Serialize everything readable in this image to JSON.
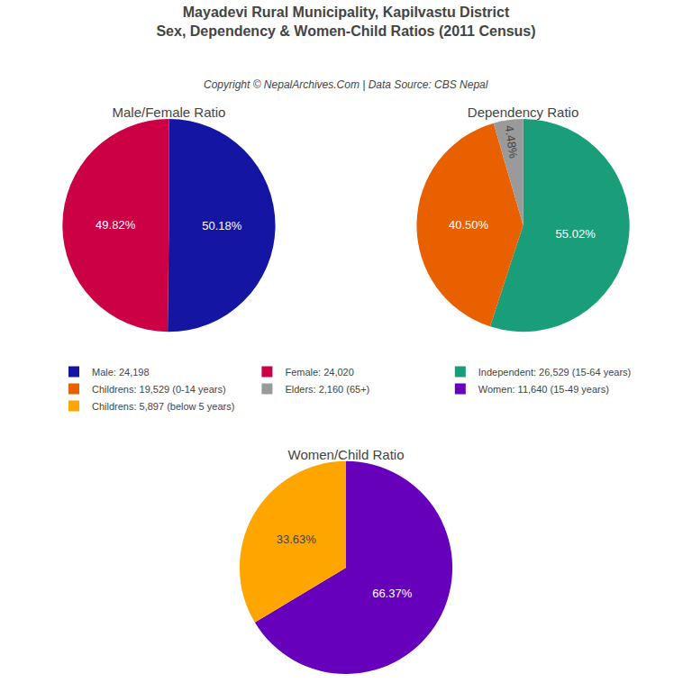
{
  "title": "Mayadevi Rural Municipality, Kapilvastu District",
  "subtitle": "Sex, Dependency & Women-Child Ratios (2011 Census)",
  "annotations": [
    "Copyright © NepalArchives.Com | Data Source: CBS Nepal"
  ],
  "legend": "center",
  "chart_data": [
    {
      "type": "pie",
      "title": "Male/Female Ratio",
      "categories": [
        "Male: 24,198",
        "Female: 24,020"
      ],
      "values": [
        50.18,
        49.82
      ],
      "value_labels": [
        "50.18%",
        "49.82%"
      ],
      "colors": [
        "#1515A3",
        "#CC0044"
      ],
      "data_labels": true
    },
    {
      "type": "pie",
      "title": "Dependency Ratio",
      "categories": [
        "Independent: 26,529 (15-64 years)",
        "Childrens: 19,529 (0-14 years)",
        "Elders: 2,160 (65+)"
      ],
      "values": [
        55.02,
        40.5,
        4.48
      ],
      "value_labels": [
        "55.02%",
        "40.50%",
        "4.48%"
      ],
      "colors": [
        "#1A9E7A",
        "#E86000",
        "#9A9A9A"
      ],
      "data_labels": true
    },
    {
      "type": "pie",
      "title": "Women/Child Ratio",
      "categories": [
        "Women: 11,640 (15-49 years)",
        "Childrens: 5,897 (below 5 years)"
      ],
      "values": [
        66.37,
        33.63
      ],
      "value_labels": [
        "66.37%",
        "33.63%"
      ],
      "colors": [
        "#6600BB",
        "#FFA500"
      ],
      "data_labels": true
    }
  ]
}
